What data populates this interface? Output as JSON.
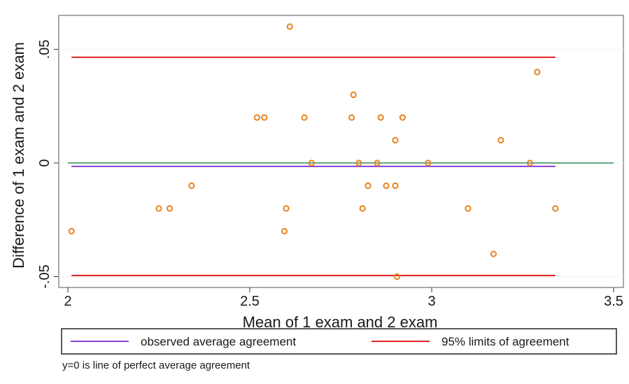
{
  "chart_data": {
    "type": "scatter",
    "xlabel": "Mean of 1 exam and 2 exam",
    "ylabel": "Difference of 1 exam and 2 exam",
    "xlim": [
      2,
      3.5
    ],
    "ylim": [
      -0.05,
      0.06
    ],
    "x_ticks": [
      2,
      2.5,
      3,
      3.5
    ],
    "x_tick_labels": [
      "2",
      "2.5",
      "3",
      "3.5"
    ],
    "y_ticks": [
      -0.05,
      0,
      0.05
    ],
    "y_tick_labels": [
      "-.05",
      "0",
      ".05"
    ],
    "grid": true,
    "legend_position": "bottom",
    "points": [
      {
        "x": 2.01,
        "y": -0.03
      },
      {
        "x": 2.25,
        "y": -0.02
      },
      {
        "x": 2.28,
        "y": -0.02
      },
      {
        "x": 2.34,
        "y": -0.01
      },
      {
        "x": 2.52,
        "y": 0.02
      },
      {
        "x": 2.54,
        "y": 0.02
      },
      {
        "x": 2.6,
        "y": -0.02
      },
      {
        "x": 2.595,
        "y": -0.03
      },
      {
        "x": 2.61,
        "y": 0.06
      },
      {
        "x": 2.65,
        "y": 0.02
      },
      {
        "x": 2.67,
        "y": 0
      },
      {
        "x": 2.78,
        "y": 0.02
      },
      {
        "x": 2.785,
        "y": 0.03
      },
      {
        "x": 2.8,
        "y": 0
      },
      {
        "x": 2.81,
        "y": -0.02
      },
      {
        "x": 2.825,
        "y": -0.01
      },
      {
        "x": 2.85,
        "y": 0
      },
      {
        "x": 2.86,
        "y": 0.02
      },
      {
        "x": 2.875,
        "y": -0.01
      },
      {
        "x": 2.9,
        "y": 0.01
      },
      {
        "x": 2.9,
        "y": -0.01
      },
      {
        "x": 2.905,
        "y": -0.05
      },
      {
        "x": 2.92,
        "y": 0.02
      },
      {
        "x": 2.99,
        "y": 0
      },
      {
        "x": 3.1,
        "y": -0.02
      },
      {
        "x": 3.17,
        "y": -0.04
      },
      {
        "x": 3.19,
        "y": 0.01
      },
      {
        "x": 3.27,
        "y": 0
      },
      {
        "x": 3.29,
        "y": 0.04
      },
      {
        "x": 3.34,
        "y": -0.02
      }
    ],
    "lines": [
      {
        "name": "observed average agreement",
        "y": -0.0015,
        "x_range": [
          2.01,
          3.34
        ],
        "color": "#8a3fd6"
      },
      {
        "name": "95% limits of agreement",
        "y": 0.0465,
        "x_range": [
          2.01,
          3.34
        ],
        "color": "#e02020"
      },
      {
        "name": "95% limits of agreement",
        "y": -0.0495,
        "x_range": [
          2.01,
          3.34
        ],
        "color": "#e02020"
      },
      {
        "name": "perfect agreement",
        "y": 0,
        "x_range": [
          2,
          3.5
        ],
        "color": "#2e8b57"
      }
    ],
    "legend": [
      {
        "label": "observed average agreement",
        "color": "#8a3fd6"
      },
      {
        "label": "95% limits of agreement",
        "color": "#e02020"
      }
    ],
    "note": "y=0 is line of perfect average agreement",
    "marker_color": "#e8821e"
  }
}
